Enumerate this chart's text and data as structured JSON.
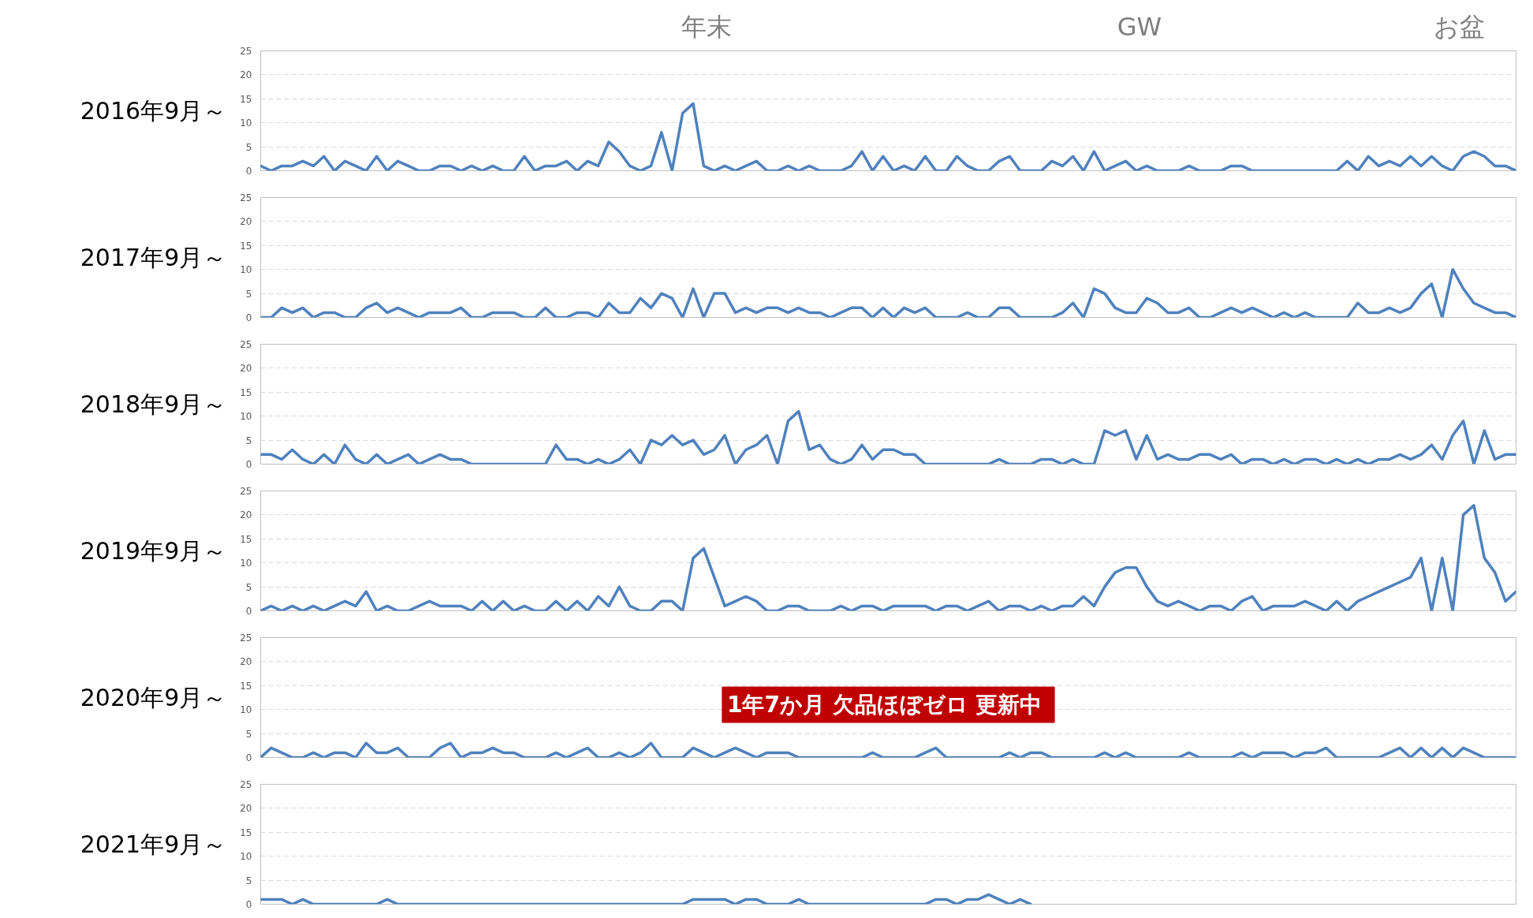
{
  "chart_data": [
    {
      "type": "line",
      "title": "2016年9月～",
      "categories": [
        null,
        null,
        null,
        null,
        null,
        null,
        null,
        null,
        null,
        null,
        null,
        null,
        null,
        null,
        null,
        null,
        null,
        null,
        null,
        null,
        null,
        null,
        null,
        null,
        null,
        null,
        null,
        null,
        null,
        null,
        null,
        null,
        null,
        null,
        null,
        null,
        null,
        null,
        null,
        null,
        null,
        null,
        null,
        null,
        null,
        null,
        null,
        null,
        null,
        null,
        null,
        null,
        null,
        null,
        null,
        null,
        null,
        null,
        null,
        null,
        null,
        null,
        null,
        null,
        null,
        null,
        null,
        null,
        null,
        null,
        null,
        null,
        null,
        null,
        null,
        null,
        null,
        null,
        null,
        null,
        null,
        null,
        null,
        null,
        null,
        null,
        null,
        null,
        null,
        null,
        null,
        null,
        null,
        null,
        null,
        null,
        null,
        null,
        null,
        null,
        null,
        null,
        null,
        null,
        null,
        null,
        null,
        null,
        null,
        null,
        null,
        null,
        null,
        null,
        null,
        null,
        null,
        null,
        null,
        null
      ],
      "series": [
        {
          "color": "#4f81bd",
          "values": [
            1,
            0,
            1,
            1,
            2,
            1,
            3,
            0,
            2,
            1,
            0,
            3,
            0,
            2,
            1,
            0,
            0,
            1,
            1,
            0,
            1,
            0,
            1,
            0,
            0,
            3,
            0,
            1,
            1,
            2,
            0,
            2,
            1,
            6,
            4,
            1,
            0,
            1,
            8,
            0,
            12,
            14,
            1,
            0,
            1,
            0,
            1,
            2,
            0,
            0,
            1,
            0,
            1,
            0,
            0,
            0,
            1,
            4,
            0,
            3,
            0,
            1,
            0,
            3,
            0,
            0,
            3,
            1,
            0,
            0,
            2,
            3,
            0,
            0,
            0,
            2,
            1,
            3,
            0,
            4,
            0,
            1,
            2,
            0,
            1,
            0,
            0,
            0,
            1,
            0,
            0,
            0,
            1,
            1,
            0,
            0,
            0,
            0,
            0,
            0,
            0,
            0,
            0,
            2,
            0,
            3,
            1,
            2,
            1,
            3,
            1,
            3,
            1,
            0,
            3,
            4,
            3,
            1,
            1,
            0
          ]
        }
      ],
      "ylim": [
        0,
        25
      ],
      "yticks": [
        0,
        5,
        10,
        15,
        20,
        25
      ],
      "grid": "y",
      "tick_labels": "y",
      "annotations": [
        "年末",
        "GW",
        "お盆"
      ]
    },
    {
      "type": "line",
      "title": "2017年9月～",
      "categories": [
        null,
        null,
        null,
        null,
        null,
        null,
        null,
        null,
        null,
        null,
        null,
        null,
        null,
        null,
        null,
        null,
        null,
        null,
        null,
        null,
        null,
        null,
        null,
        null,
        null,
        null,
        null,
        null,
        null,
        null,
        null,
        null,
        null,
        null,
        null,
        null,
        null,
        null,
        null,
        null,
        null,
        null,
        null,
        null,
        null,
        null,
        null,
        null,
        null,
        null,
        null,
        null,
        null,
        null,
        null,
        null,
        null,
        null,
        null,
        null,
        null,
        null,
        null,
        null,
        null,
        null,
        null,
        null,
        null,
        null,
        null,
        null,
        null,
        null,
        null,
        null,
        null,
        null,
        null,
        null,
        null,
        null,
        null,
        null,
        null,
        null,
        null,
        null,
        null,
        null,
        null,
        null,
        null,
        null,
        null,
        null,
        null,
        null,
        null,
        null,
        null,
        null,
        null,
        null,
        null,
        null,
        null,
        null,
        null,
        null,
        null,
        null,
        null,
        null,
        null,
        null,
        null,
        null,
        null,
        null
      ],
      "series": [
        {
          "color": "#4f81bd",
          "values": [
            0,
            0,
            2,
            1,
            2,
            0,
            1,
            1,
            0,
            0,
            2,
            3,
            1,
            2,
            1,
            0,
            1,
            1,
            1,
            2,
            0,
            0,
            1,
            1,
            1,
            0,
            0,
            2,
            0,
            0,
            1,
            1,
            0,
            3,
            1,
            1,
            4,
            2,
            5,
            4,
            0,
            6,
            0,
            5,
            5,
            1,
            2,
            1,
            2,
            2,
            1,
            2,
            1,
            1,
            0,
            1,
            2,
            2,
            0,
            2,
            0,
            2,
            1,
            2,
            0,
            0,
            0,
            1,
            0,
            0,
            2,
            2,
            0,
            0,
            0,
            0,
            1,
            3,
            0,
            6,
            5,
            2,
            1,
            1,
            4,
            3,
            1,
            1,
            2,
            0,
            0,
            1,
            2,
            1,
            2,
            1,
            0,
            1,
            0,
            1,
            0,
            0,
            0,
            0,
            3,
            1,
            1,
            2,
            1,
            2,
            5,
            7,
            0,
            10,
            6,
            3,
            2,
            1,
            1,
            0
          ]
        }
      ],
      "ylim": [
        0,
        25
      ],
      "yticks": [
        0,
        5,
        10,
        15,
        20,
        25
      ],
      "grid": "y",
      "tick_labels": "y"
    },
    {
      "type": "line",
      "title": "2018年9月～",
      "categories": [
        null,
        null,
        null,
        null,
        null,
        null,
        null,
        null,
        null,
        null,
        null,
        null,
        null,
        null,
        null,
        null,
        null,
        null,
        null,
        null,
        null,
        null,
        null,
        null,
        null,
        null,
        null,
        null,
        null,
        null,
        null,
        null,
        null,
        null,
        null,
        null,
        null,
        null,
        null,
        null,
        null,
        null,
        null,
        null,
        null,
        null,
        null,
        null,
        null,
        null,
        null,
        null,
        null,
        null,
        null,
        null,
        null,
        null,
        null,
        null,
        null,
        null,
        null,
        null,
        null,
        null,
        null,
        null,
        null,
        null,
        null,
        null,
        null,
        null,
        null,
        null,
        null,
        null,
        null,
        null,
        null,
        null,
        null,
        null,
        null,
        null,
        null,
        null,
        null,
        null,
        null,
        null,
        null,
        null,
        null,
        null,
        null,
        null,
        null,
        null,
        null,
        null,
        null,
        null,
        null,
        null,
        null,
        null,
        null,
        null,
        null,
        null,
        null,
        null,
        null,
        null,
        null,
        null,
        null,
        null
      ],
      "series": [
        {
          "color": "#4f81bd",
          "values": [
            2,
            2,
            1,
            3,
            1,
            0,
            2,
            0,
            4,
            1,
            0,
            2,
            0,
            1,
            2,
            0,
            1,
            2,
            1,
            1,
            0,
            0,
            0,
            0,
            0,
            0,
            0,
            0,
            4,
            1,
            1,
            0,
            1,
            0,
            1,
            3,
            0,
            5,
            4,
            6,
            4,
            5,
            2,
            3,
            6,
            0,
            3,
            4,
            6,
            0,
            9,
            11,
            3,
            4,
            1,
            0,
            1,
            4,
            1,
            3,
            3,
            2,
            2,
            0,
            0,
            0,
            0,
            0,
            0,
            0,
            1,
            0,
            0,
            0,
            1,
            1,
            0,
            1,
            0,
            0,
            7,
            6,
            7,
            1,
            6,
            1,
            2,
            1,
            1,
            2,
            2,
            1,
            2,
            0,
            1,
            1,
            0,
            1,
            0,
            1,
            1,
            0,
            1,
            0,
            1,
            0,
            1,
            1,
            2,
            1,
            2,
            4,
            1,
            6,
            9,
            0,
            7,
            1,
            2,
            2
          ]
        }
      ],
      "ylim": [
        0,
        25
      ],
      "yticks": [
        0,
        5,
        10,
        15,
        20,
        25
      ],
      "grid": "y",
      "tick_labels": "y"
    },
    {
      "type": "line",
      "title": "2019年9月～",
      "categories": [
        null,
        null,
        null,
        null,
        null,
        null,
        null,
        null,
        null,
        null,
        null,
        null,
        null,
        null,
        null,
        null,
        null,
        null,
        null,
        null,
        null,
        null,
        null,
        null,
        null,
        null,
        null,
        null,
        null,
        null,
        null,
        null,
        null,
        null,
        null,
        null,
        null,
        null,
        null,
        null,
        null,
        null,
        null,
        null,
        null,
        null,
        null,
        null,
        null,
        null,
        null,
        null,
        null,
        null,
        null,
        null,
        null,
        null,
        null,
        null,
        null,
        null,
        null,
        null,
        null,
        null,
        null,
        null,
        null,
        null,
        null,
        null,
        null,
        null,
        null,
        null,
        null,
        null,
        null,
        null,
        null,
        null,
        null,
        null,
        null,
        null,
        null,
        null,
        null,
        null,
        null,
        null,
        null,
        null,
        null,
        null,
        null,
        null,
        null,
        null,
        null,
        null,
        null,
        null,
        null,
        null,
        null,
        null,
        null,
        null,
        null,
        null,
        null,
        null,
        null,
        null,
        null,
        null,
        null,
        null
      ],
      "series": [
        {
          "color": "#4f81bd",
          "values": [
            0,
            1,
            0,
            1,
            0,
            1,
            0,
            1,
            2,
            1,
            4,
            0,
            1,
            0,
            0,
            1,
            2,
            1,
            1,
            1,
            0,
            2,
            0,
            2,
            0,
            1,
            0,
            0,
            2,
            0,
            2,
            0,
            3,
            1,
            5,
            1,
            0,
            0,
            2,
            2,
            0,
            11,
            13,
            7,
            1,
            2,
            3,
            2,
            0,
            0,
            1,
            1,
            0,
            0,
            0,
            1,
            0,
            1,
            1,
            0,
            1,
            1,
            1,
            1,
            0,
            1,
            1,
            0,
            1,
            2,
            0,
            1,
            1,
            0,
            1,
            0,
            1,
            1,
            3,
            1,
            5,
            8,
            9,
            9,
            5,
            2,
            1,
            2,
            1,
            0,
            1,
            1,
            0,
            2,
            3,
            0,
            1,
            1,
            1,
            2,
            1,
            0,
            2,
            0,
            2,
            3,
            4,
            5,
            6,
            7,
            11,
            0,
            11,
            0,
            20,
            22,
            11,
            8,
            2,
            4
          ]
        }
      ],
      "ylim": [
        0,
        25
      ],
      "yticks": [
        0,
        5,
        10,
        15,
        20,
        25
      ],
      "grid": "y",
      "tick_labels": "y"
    },
    {
      "type": "line",
      "title": "2020年9月～",
      "categories": [
        null,
        null,
        null,
        null,
        null,
        null,
        null,
        null,
        null,
        null,
        null,
        null,
        null,
        null,
        null,
        null,
        null,
        null,
        null,
        null,
        null,
        null,
        null,
        null,
        null,
        null,
        null,
        null,
        null,
        null,
        null,
        null,
        null,
        null,
        null,
        null,
        null,
        null,
        null,
        null,
        null,
        null,
        null,
        null,
        null,
        null,
        null,
        null,
        null,
        null,
        null,
        null,
        null,
        null,
        null,
        null,
        null,
        null,
        null,
        null,
        null,
        null,
        null,
        null,
        null,
        null,
        null,
        null,
        null,
        null,
        null,
        null,
        null,
        null,
        null,
        null,
        null,
        null,
        null,
        null,
        null,
        null,
        null,
        null,
        null,
        null,
        null,
        null,
        null,
        null,
        null,
        null,
        null,
        null,
        null,
        null,
        null,
        null,
        null,
        null,
        null,
        null,
        null,
        null,
        null,
        null,
        null,
        null,
        null,
        null,
        null,
        null,
        null,
        null,
        null,
        null,
        null,
        null,
        null,
        null
      ],
      "series": [
        {
          "color": "#4f81bd",
          "values": [
            0,
            2,
            1,
            0,
            0,
            1,
            0,
            1,
            1,
            0,
            3,
            1,
            1,
            2,
            0,
            0,
            0,
            2,
            3,
            0,
            1,
            1,
            2,
            1,
            1,
            0,
            0,
            0,
            1,
            0,
            1,
            2,
            0,
            0,
            1,
            0,
            1,
            3,
            0,
            0,
            0,
            2,
            1,
            0,
            1,
            2,
            1,
            0,
            1,
            1,
            1,
            0,
            0,
            0,
            0,
            0,
            0,
            0,
            1,
            0,
            0,
            0,
            0,
            1,
            2,
            0,
            0,
            0,
            0,
            0,
            0,
            1,
            0,
            1,
            1,
            0,
            0,
            0,
            0,
            0,
            1,
            0,
            1,
            0,
            0,
            0,
            0,
            0,
            1,
            0,
            0,
            0,
            0,
            1,
            0,
            1,
            1,
            1,
            0,
            1,
            1,
            2,
            0,
            0,
            0,
            0,
            0,
            1,
            2,
            0,
            2,
            0,
            2,
            0,
            2,
            1,
            0,
            0,
            0,
            0
          ]
        }
      ],
      "ylim": [
        0,
        25
      ],
      "yticks": [
        0,
        5,
        10,
        15,
        20,
        25
      ],
      "grid": "y",
      "tick_labels": "y",
      "annotations": [
        "1年7か月 欠品ほぼゼロ  更新中"
      ]
    },
    {
      "type": "line",
      "title": "2021年9月～",
      "categories": [
        null,
        null,
        null,
        null,
        null,
        null,
        null,
        null,
        null,
        null,
        null,
        null,
        null,
        null,
        null,
        null,
        null,
        null,
        null,
        null,
        null,
        null,
        null,
        null,
        null,
        null,
        null,
        null,
        null,
        null,
        null,
        null,
        null,
        null,
        null,
        null,
        null,
        null,
        null,
        null,
        null,
        null,
        null,
        null,
        null,
        null,
        null,
        null,
        null,
        null,
        null,
        null,
        null,
        null,
        null,
        null,
        null,
        null,
        null,
        null,
        null,
        null,
        null,
        null,
        null,
        null,
        null,
        null,
        null,
        null,
        null,
        null,
        null,
        null,
        null,
        null,
        null,
        null,
        null,
        null,
        null,
        null,
        null,
        null,
        null,
        null,
        null,
        null,
        null,
        null,
        null,
        null,
        null,
        null,
        null,
        null,
        null,
        null,
        null,
        null,
        null,
        null,
        null,
        null,
        null,
        null,
        null,
        null,
        null,
        null,
        null,
        null,
        null,
        null,
        null,
        null,
        null,
        null,
        null,
        null
      ],
      "series": [
        {
          "color": "#4f81bd",
          "values": [
            1,
            1,
            1,
            0,
            1,
            0,
            0,
            0,
            0,
            0,
            0,
            0,
            1,
            0,
            0,
            0,
            0,
            0,
            0,
            0,
            0,
            0,
            0,
            0,
            0,
            0,
            0,
            0,
            0,
            0,
            0,
            0,
            0,
            0,
            0,
            0,
            0,
            0,
            0,
            0,
            0,
            1,
            1,
            1,
            1,
            0,
            1,
            1,
            0,
            0,
            0,
            1,
            0,
            0,
            0,
            0,
            0,
            0,
            0,
            0,
            0,
            0,
            0,
            0,
            1,
            1,
            0,
            1,
            1,
            2,
            1,
            0,
            1,
            0,
            null,
            null,
            null,
            null,
            null,
            null,
            null,
            null,
            null,
            null,
            null,
            null,
            null,
            null,
            null,
            null,
            null,
            null,
            null,
            null,
            null,
            null,
            null,
            null,
            null,
            null,
            null,
            null,
            null,
            null,
            null,
            null,
            null,
            null,
            null,
            null,
            null,
            null,
            null,
            null,
            null,
            null,
            null,
            null,
            null,
            null
          ]
        }
      ],
      "ylim": [
        0,
        25
      ],
      "yticks": [
        0,
        5,
        10,
        15,
        20,
        25
      ],
      "grid": "y",
      "tick_labels": "y"
    }
  ]
}
